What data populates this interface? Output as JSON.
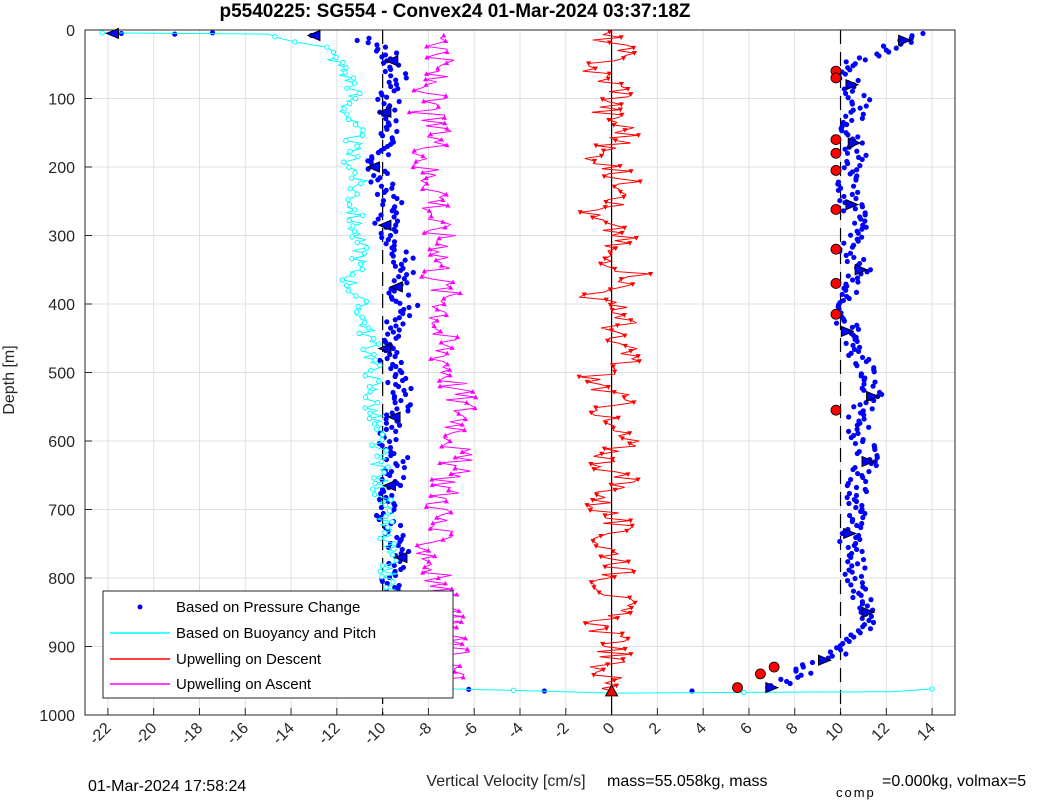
{
  "figure": {
    "title": "p5540225: SG554 - Convex24 01-Mar-2024 03:37:18Z",
    "timestamp": "01-Mar-2024 17:58:24",
    "mass_text": "mass=55.058kg, mass",
    "comp_sub": "comp",
    "comp_text": "=0.000kg, volmax=5"
  },
  "chart_data": {
    "type": "scatter",
    "title": "p5540225: SG554 - Convex24 01-Mar-2024 03:37:18Z",
    "xlabel": "Vertical Velocity [cm/s]",
    "ylabel": "Depth [m]",
    "xlim": [
      -23,
      15
    ],
    "ylim": [
      1000,
      0
    ],
    "y_reversed": true,
    "grid": true,
    "legend_position": "bottom-left",
    "xticks": [
      -22,
      -20,
      -18,
      -16,
      -14,
      -12,
      -10,
      -8,
      -6,
      -4,
      -2,
      0,
      2,
      4,
      6,
      8,
      10,
      12,
      14
    ],
    "yticks": [
      0,
      100,
      200,
      300,
      400,
      500,
      600,
      700,
      800,
      900,
      1000
    ],
    "reference_lines": {
      "dashed_x": [
        -10,
        10
      ],
      "solid_x": [
        0
      ]
    },
    "series": [
      {
        "name": "Based on Pressure Change",
        "color": "#0000ff",
        "marker": "dot",
        "points": [
          [
            -21.8,
            5
          ],
          [
            -19.5,
            6
          ],
          [
            -17,
            4
          ],
          [
            -13,
            8
          ],
          [
            -11,
            12
          ],
          [
            -10,
            25
          ],
          [
            -9.6,
            45
          ],
          [
            -9.3,
            70
          ],
          [
            -9.7,
            95
          ],
          [
            -9.9,
            120
          ],
          [
            -9.5,
            145
          ],
          [
            -10.1,
            170
          ],
          [
            -10.4,
            200
          ],
          [
            -10,
            225
          ],
          [
            -9.6,
            255
          ],
          [
            -9.9,
            285
          ],
          [
            -9.3,
            315
          ],
          [
            -9,
            345
          ],
          [
            -9.4,
            375
          ],
          [
            -8.9,
            405
          ],
          [
            -9.6,
            435
          ],
          [
            -9.9,
            465
          ],
          [
            -9.4,
            500
          ],
          [
            -9.1,
            535
          ],
          [
            -9.5,
            565
          ],
          [
            -9.8,
            595
          ],
          [
            -9.3,
            630
          ],
          [
            -9.7,
            665
          ],
          [
            -9.9,
            700
          ],
          [
            -9.5,
            735
          ],
          [
            -9.2,
            770
          ],
          [
            -9.6,
            805
          ],
          [
            -9.9,
            840
          ],
          [
            -9.8,
            875
          ],
          [
            -9.6,
            910
          ],
          [
            -9.4,
            945
          ],
          [
            -9,
            960
          ],
          [
            -3,
            965
          ],
          [
            4,
            965
          ],
          [
            7,
            960
          ],
          [
            8,
            945
          ],
          [
            8.6,
            930
          ],
          [
            9.3,
            920
          ],
          [
            10.2,
            905
          ],
          [
            11,
            880
          ],
          [
            11.2,
            850
          ],
          [
            10.8,
            810
          ],
          [
            10.5,
            770
          ],
          [
            10.4,
            735
          ],
          [
            10.9,
            700
          ],
          [
            10.6,
            665
          ],
          [
            11.2,
            630
          ],
          [
            10.9,
            595
          ],
          [
            10.6,
            565
          ],
          [
            11.4,
            535
          ],
          [
            11.2,
            505
          ],
          [
            10.7,
            475
          ],
          [
            10.3,
            440
          ],
          [
            10.2,
            410
          ],
          [
            10.6,
            380
          ],
          [
            10.9,
            350
          ],
          [
            10.4,
            320
          ],
          [
            10.8,
            285
          ],
          [
            10.5,
            255
          ],
          [
            10.3,
            225
          ],
          [
            10.7,
            195
          ],
          [
            10.6,
            165
          ],
          [
            10.4,
            135
          ],
          [
            10.9,
            105
          ],
          [
            10.5,
            80
          ],
          [
            10.1,
            55
          ],
          [
            11.5,
            35
          ],
          [
            12.8,
            15
          ],
          [
            13.6,
            5
          ]
        ]
      },
      {
        "name": "Based on Buoyancy and Pitch",
        "color": "#00ffff",
        "marker": "open-circle-line",
        "points": [
          [
            -22.5,
            4
          ],
          [
            -15,
            6
          ],
          [
            -12.5,
            25
          ],
          [
            -11.8,
            55
          ],
          [
            -11.2,
            85
          ],
          [
            -11.6,
            115
          ],
          [
            -11.2,
            150
          ],
          [
            -11.4,
            185
          ],
          [
            -11.1,
            220
          ],
          [
            -11.3,
            255
          ],
          [
            -11.2,
            290
          ],
          [
            -10.9,
            330
          ],
          [
            -11.4,
            365
          ],
          [
            -11,
            400
          ],
          [
            -10.7,
            435
          ],
          [
            -10.5,
            470
          ],
          [
            -10.4,
            505
          ],
          [
            -10.5,
            540
          ],
          [
            -10.3,
            575
          ],
          [
            -10.2,
            610
          ],
          [
            -10.1,
            650
          ],
          [
            -10,
            690
          ],
          [
            -9.9,
            730
          ],
          [
            -9.8,
            770
          ],
          [
            -9.7,
            810
          ],
          [
            -9.6,
            850
          ],
          [
            -9.6,
            890
          ],
          [
            -9.5,
            930
          ],
          [
            -9.3,
            960
          ],
          [
            0,
            968
          ],
          [
            6,
            967
          ],
          [
            12,
            966
          ],
          [
            14,
            962
          ]
        ]
      },
      {
        "name": "Upwelling on Descent",
        "color": "#ff0000",
        "marker": "triangle-down-line",
        "points": [
          [
            -0.5,
            3
          ],
          [
            0.4,
            30
          ],
          [
            -0.8,
            60
          ],
          [
            0.6,
            90
          ],
          [
            -0.3,
            120
          ],
          [
            0.8,
            150
          ],
          [
            -0.6,
            180
          ],
          [
            0.2,
            210
          ],
          [
            1.2,
            240
          ],
          [
            -1.1,
            270
          ],
          [
            0.5,
            300
          ],
          [
            -0.4,
            330
          ],
          [
            1.4,
            360
          ],
          [
            -0.8,
            390
          ],
          [
            0.7,
            420
          ],
          [
            -0.2,
            450
          ],
          [
            0.9,
            480
          ],
          [
            -0.9,
            510
          ],
          [
            0.3,
            540
          ],
          [
            -0.5,
            570
          ],
          [
            0.6,
            600
          ],
          [
            -0.3,
            630
          ],
          [
            0.5,
            660
          ],
          [
            -0.6,
            690
          ],
          [
            0.2,
            720
          ],
          [
            -0.4,
            750
          ],
          [
            0.6,
            780
          ],
          [
            -0.2,
            810
          ],
          [
            0.4,
            840
          ],
          [
            -0.5,
            870
          ],
          [
            0.3,
            900
          ],
          [
            -0.3,
            930
          ],
          [
            0,
            965
          ]
        ]
      },
      {
        "name": "Upwelling on Ascent",
        "color": "#ff00ff",
        "marker": "triangle-up-line",
        "points": [
          [
            -7,
            8
          ],
          [
            -7.6,
            40
          ],
          [
            -7.9,
            80
          ],
          [
            -8.1,
            120
          ],
          [
            -7.6,
            160
          ],
          [
            -8.2,
            200
          ],
          [
            -7.4,
            240
          ],
          [
            -7.8,
            280
          ],
          [
            -7.2,
            320
          ],
          [
            -7.6,
            360
          ],
          [
            -7.1,
            400
          ],
          [
            -7.5,
            440
          ],
          [
            -7.2,
            480
          ],
          [
            -6.8,
            520
          ],
          [
            -6.4,
            560
          ],
          [
            -6.7,
            600
          ],
          [
            -6.9,
            640
          ],
          [
            -7.3,
            680
          ],
          [
            -7.6,
            720
          ],
          [
            -7.9,
            760
          ],
          [
            -7.7,
            800
          ],
          [
            -7.4,
            840
          ],
          [
            -7.1,
            880
          ],
          [
            -6.8,
            920
          ],
          [
            -7,
            945
          ],
          [
            -8.8,
            960
          ]
        ]
      }
    ],
    "highlight_markers": {
      "black_outlined_triangles_series": [
        "Based on Pressure Change"
      ],
      "red_filled_markers_depths": [
        60,
        70,
        160,
        180,
        205,
        262,
        320,
        370,
        415,
        555,
        930,
        940,
        960
      ]
    }
  },
  "legend": [
    {
      "label": "Based on Pressure Change",
      "color": "#0000ff",
      "style": "dot"
    },
    {
      "label": "Based on Buoyancy and Pitch",
      "color": "#00ffff",
      "style": "line"
    },
    {
      "label": "Upwelling on Descent",
      "color": "#ff0000",
      "style": "line"
    },
    {
      "label": "Upwelling on Ascent",
      "color": "#ff00ff",
      "style": "line"
    }
  ]
}
